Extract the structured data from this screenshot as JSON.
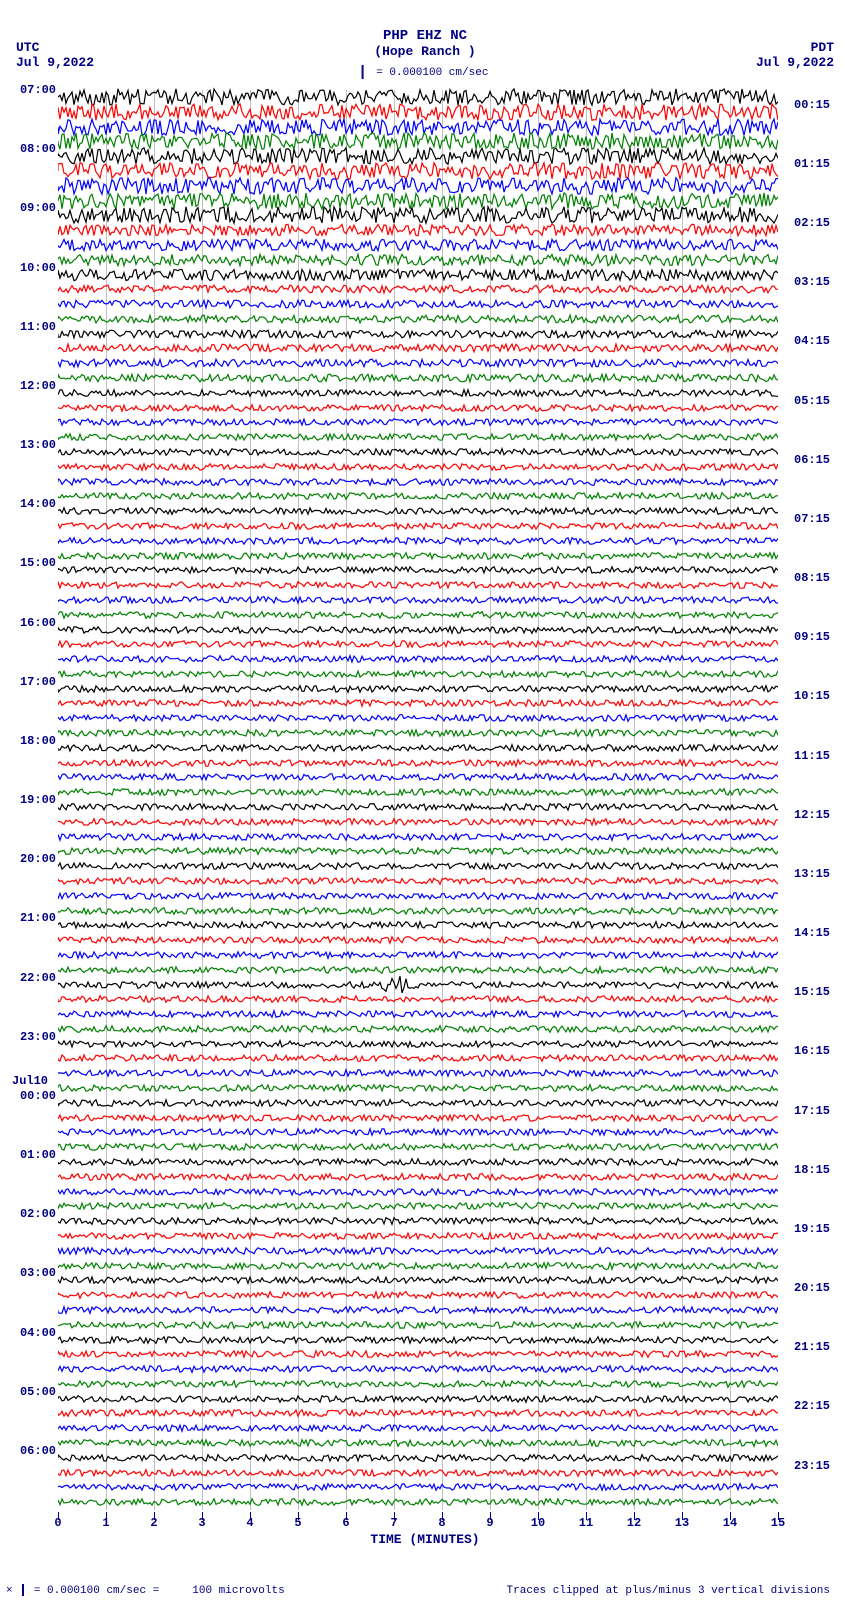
{
  "header": {
    "title": "PHP EHZ NC",
    "subtitle": "(Hope Ranch )",
    "scale_label": "= 0.000100 cm/sec"
  },
  "top_left": {
    "tz": "UTC",
    "date": "Jul 9,2022"
  },
  "top_right": {
    "tz": "PDT",
    "date": "Jul 9,2022"
  },
  "plot": {
    "type": "helicorder",
    "x_title": "TIME (MINUTES)",
    "xlim": [
      0,
      15
    ],
    "x_ticks": [
      0,
      1,
      2,
      3,
      4,
      5,
      6,
      7,
      8,
      9,
      10,
      11,
      12,
      13,
      14,
      15
    ],
    "grid_x": [
      1,
      2,
      3,
      4,
      5,
      6,
      7,
      8,
      9,
      10,
      11,
      12,
      13,
      14
    ],
    "grid_color": "#c0c0c0",
    "background_color": "#ffffff",
    "trace_colors": [
      "#000000",
      "#ff0000",
      "#0000ff",
      "#008000"
    ],
    "label_color": "#000080",
    "trace_count": 96,
    "amp_rows": [
      {
        "start": 0,
        "end": 9,
        "amp": 5.5
      },
      {
        "start": 9,
        "end": 13,
        "amp": 3.8
      },
      {
        "start": 13,
        "end": 20,
        "amp": 2.6
      },
      {
        "start": 20,
        "end": 96,
        "amp": 2.2
      }
    ],
    "noisy_red_at": 60,
    "left_hour_labels": [
      {
        "row": 0,
        "text": "07:00"
      },
      {
        "row": 4,
        "text": "08:00"
      },
      {
        "row": 8,
        "text": "09:00"
      },
      {
        "row": 12,
        "text": "10:00"
      },
      {
        "row": 16,
        "text": "11:00"
      },
      {
        "row": 20,
        "text": "12:00"
      },
      {
        "row": 24,
        "text": "13:00"
      },
      {
        "row": 28,
        "text": "14:00"
      },
      {
        "row": 32,
        "text": "15:00"
      },
      {
        "row": 36,
        "text": "16:00"
      },
      {
        "row": 40,
        "text": "17:00"
      },
      {
        "row": 44,
        "text": "18:00"
      },
      {
        "row": 48,
        "text": "19:00"
      },
      {
        "row": 52,
        "text": "20:00"
      },
      {
        "row": 56,
        "text": "21:00"
      },
      {
        "row": 60,
        "text": "22:00"
      },
      {
        "row": 64,
        "text": "23:00"
      },
      {
        "row": 68,
        "text": "00:00"
      },
      {
        "row": 72,
        "text": "01:00"
      },
      {
        "row": 76,
        "text": "02:00"
      },
      {
        "row": 80,
        "text": "03:00"
      },
      {
        "row": 84,
        "text": "04:00"
      },
      {
        "row": 88,
        "text": "05:00"
      },
      {
        "row": 92,
        "text": "06:00"
      }
    ],
    "left_day_label": {
      "row": 67,
      "text": "Jul10"
    },
    "right_labels": [
      {
        "row": 1,
        "text": "00:15"
      },
      {
        "row": 5,
        "text": "01:15"
      },
      {
        "row": 9,
        "text": "02:15"
      },
      {
        "row": 13,
        "text": "03:15"
      },
      {
        "row": 17,
        "text": "04:15"
      },
      {
        "row": 21,
        "text": "05:15"
      },
      {
        "row": 25,
        "text": "06:15"
      },
      {
        "row": 29,
        "text": "07:15"
      },
      {
        "row": 33,
        "text": "08:15"
      },
      {
        "row": 37,
        "text": "09:15"
      },
      {
        "row": 41,
        "text": "10:15"
      },
      {
        "row": 45,
        "text": "11:15"
      },
      {
        "row": 49,
        "text": "12:15"
      },
      {
        "row": 53,
        "text": "13:15"
      },
      {
        "row": 57,
        "text": "14:15"
      },
      {
        "row": 61,
        "text": "15:15"
      },
      {
        "row": 65,
        "text": "16:15"
      },
      {
        "row": 69,
        "text": "17:15"
      },
      {
        "row": 73,
        "text": "18:15"
      },
      {
        "row": 77,
        "text": "19:15"
      },
      {
        "row": 81,
        "text": "20:15"
      },
      {
        "row": 85,
        "text": "21:15"
      },
      {
        "row": 89,
        "text": "22:15"
      },
      {
        "row": 93,
        "text": "23:15"
      }
    ]
  },
  "footer": {
    "left_a": "= 0.000100 cm/sec =",
    "left_b": "100 microvolts",
    "right": "Traces clipped at plus/minus 3 vertical divisions"
  }
}
